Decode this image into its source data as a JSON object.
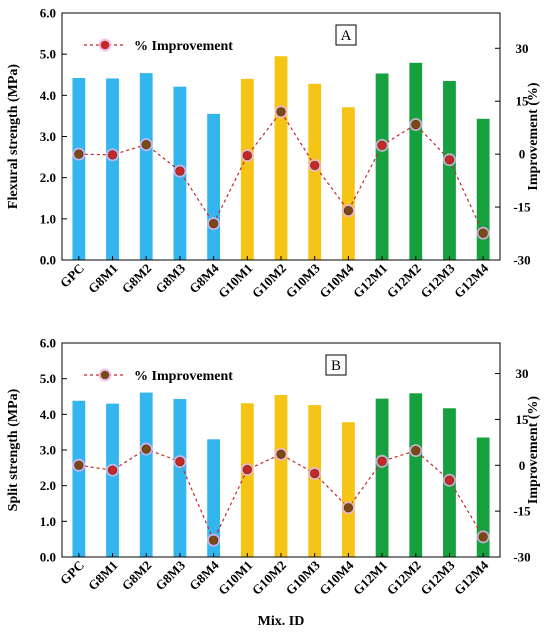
{
  "chart_data": [
    {
      "panel_label": "A",
      "type": "bar",
      "categories": [
        "GPC",
        "G8M1",
        "G8M2",
        "G8M3",
        "G8M4",
        "G10M1",
        "G10M2",
        "G10M3",
        "G10M4",
        "G12M1",
        "G12M2",
        "G12M3",
        "G12M4"
      ],
      "bar_colors": [
        "#33b5ee",
        "#33b5ee",
        "#33b5ee",
        "#33b5ee",
        "#33b5ee",
        "#f6c414",
        "#f6c414",
        "#f6c414",
        "#f6c414",
        "#17a040",
        "#17a040",
        "#17a040",
        "#17a040"
      ],
      "series": [
        {
          "values": [
            4.42,
            4.41,
            4.54,
            4.21,
            3.55,
            4.4,
            4.95,
            4.28,
            3.71,
            4.53,
            4.79,
            4.35,
            3.43
          ]
        },
        {
          "name": "% Improvement",
          "axis": "right",
          "line_style": "dashed",
          "line_color": "#c62828",
          "values": [
            0.0,
            -0.2,
            2.7,
            -4.8,
            -19.7,
            -0.4,
            12.0,
            -3.2,
            -16.0,
            2.5,
            8.4,
            -1.6,
            -22.4
          ]
        }
      ],
      "ylabel": "Flexural strength (MPa)",
      "ylabel_right": "Improvement  (%)",
      "ylim": [
        0.0,
        6.0
      ],
      "yticks": [
        "0.0",
        "1.0",
        "2.0",
        "3.0",
        "4.0",
        "5.0",
        "6.0"
      ],
      "ylim_right": [
        -30,
        40
      ],
      "yticks_right": [
        "-30",
        "-15",
        "0",
        "15",
        "30"
      ],
      "legend": {
        "label": "% Improvement",
        "position": "top-left"
      }
    },
    {
      "panel_label": "B",
      "type": "bar",
      "categories": [
        "GPC",
        "G8M1",
        "G8M2",
        "G8M3",
        "G8M4",
        "G10M1",
        "G10M2",
        "G10M3",
        "G10M4",
        "G12M1",
        "G12M2",
        "G12M3",
        "G12M4"
      ],
      "bar_colors": [
        "#33b5ee",
        "#33b5ee",
        "#33b5ee",
        "#33b5ee",
        "#33b5ee",
        "#f6c414",
        "#f6c414",
        "#f6c414",
        "#f6c414",
        "#17a040",
        "#17a040",
        "#17a040",
        "#17a040"
      ],
      "series": [
        {
          "values": [
            4.38,
            4.3,
            4.61,
            4.43,
            3.3,
            4.31,
            4.54,
            4.26,
            3.78,
            4.44,
            4.59,
            4.17,
            3.35
          ]
        },
        {
          "name": "% Improvement",
          "axis": "right",
          "line_style": "dashed",
          "line_color": "#c62828",
          "values": [
            0.0,
            -1.6,
            5.3,
            1.2,
            -24.5,
            -1.4,
            3.6,
            -2.7,
            -13.9,
            1.3,
            4.8,
            -4.9,
            -23.4
          ]
        }
      ],
      "ylabel": "Split strength (MPa)",
      "ylabel_right": "Improvement  (%)",
      "xlabel": "Mix. ID",
      "ylim": [
        0.0,
        6.0
      ],
      "yticks": [
        "0.0",
        "1.0",
        "2.0",
        "3.0",
        "4.0",
        "5.0",
        "6.0"
      ],
      "ylim_right": [
        -30,
        40
      ],
      "yticks_right": [
        "-30",
        "-15",
        "0",
        "15",
        "30"
      ],
      "legend": {
        "label": "% Improvement",
        "position": "top-left"
      }
    }
  ]
}
